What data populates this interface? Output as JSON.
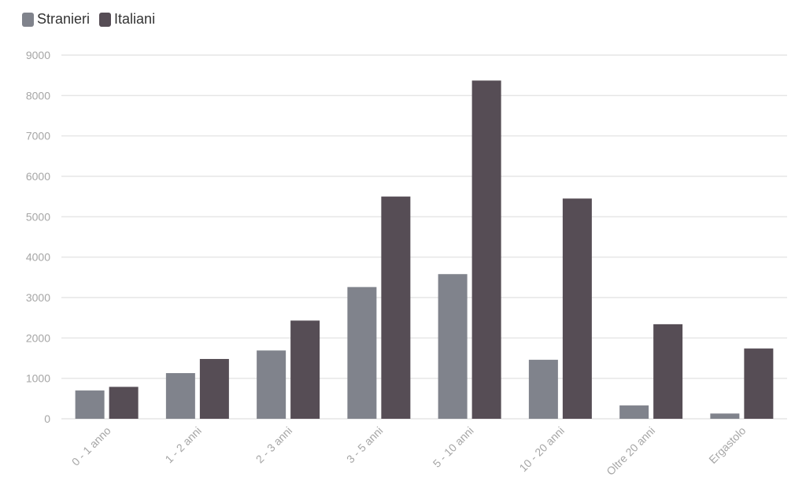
{
  "colors": {
    "stranieri": "#80838c",
    "italiani": "#564d55",
    "grid": "#e6e6e6",
    "tick": "#a6a6a6"
  },
  "legend": {
    "items": [
      {
        "label": "Stranieri",
        "color": "#80838c"
      },
      {
        "label": "Italiani",
        "color": "#564d55"
      }
    ]
  },
  "chart_data": {
    "type": "bar",
    "title": "",
    "xlabel": "",
    "ylabel": "",
    "categories": [
      "0 - 1 anno",
      "1 - 2 anni",
      "2 - 3 anni",
      "3 - 5 anni",
      "5 - 10 anni",
      "10 - 20 anni",
      "Oltre 20 anni",
      "Ergastolo"
    ],
    "series": [
      {
        "name": "Stranieri",
        "color": "#80838c",
        "values": [
          700,
          1130,
          1690,
          3260,
          3580,
          1460,
          330,
          130
        ]
      },
      {
        "name": "Italiani",
        "color": "#564d55",
        "values": [
          790,
          1480,
          2430,
          5500,
          8370,
          5450,
          2340,
          1740
        ]
      }
    ],
    "ylim": [
      0,
      9000
    ],
    "yticks": [
      0,
      1000,
      2000,
      3000,
      4000,
      5000,
      6000,
      7000,
      8000,
      9000
    ],
    "grid": true,
    "legend_position": "top-left"
  }
}
